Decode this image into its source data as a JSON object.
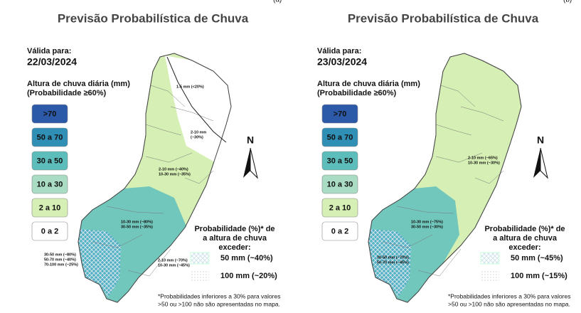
{
  "panels": [
    {
      "tag": "(a)",
      "title": "Previsão Probabilística de Chuva",
      "valid_label": "Válida para:",
      "date": "22/03/2024",
      "legend_title": "Altura de chuva diária (mm)",
      "legend_subtitle": "(Probabilidade ≥60%)",
      "legend": [
        ">70",
        "50 a 70",
        "30 a 50",
        "10 a 30",
        "2 a 10",
        "0 a 2"
      ],
      "north": "N",
      "map_labels": [
        [
          "1-5 mm (<20%)"
        ],
        [
          "2-10 mm",
          "(~30%)"
        ],
        [
          "2-10 mm (~40%)",
          "10-30 mm (~35%)"
        ],
        [
          "10-30 mm (~80%)",
          "30-50 mm (~35%)"
        ],
        [
          "30-50 mm (~80%)",
          "50-70 mm (~40%)",
          "70-100 mm (~25%)"
        ],
        [
          "2-10 mm (~70%)",
          "10-30 mm (~45%)"
        ]
      ],
      "prob_title": [
        "Probabilidade (%)* de",
        "a altura de chuva",
        "exceder:"
      ],
      "prob_items": [
        "50 mm (~40%)",
        "100 mm (~20%)"
      ],
      "footnote": [
        "*Probabilidades inferiores a 30% para valores",
        ">50 ou >100 não são apresentadas no mapa."
      ]
    },
    {
      "tag": "(b)",
      "title": "Previsão Probabilística de Chuva",
      "valid_label": "Válida para:",
      "date": "23/03/2024",
      "legend_title": "Altura de chuva diária (mm)",
      "legend_subtitle": "(Probabilidade ≥60%)",
      "legend": [
        ">70",
        "50 a 70",
        "30 a 50",
        "10 a 30",
        "2 a 10",
        "0 a 2"
      ],
      "north": "N",
      "map_labels": [
        [
          "2-10 mm (~65%)",
          "10-30 mm (~30%)"
        ],
        [
          "10-30 mm (~75%)",
          "30-50 mm (~30%)"
        ],
        [
          "30-50 mm (~70%)",
          "50-70 mm (~45%)"
        ]
      ],
      "prob_title": [
        "Probabilidade (%)* de",
        "a altura de chuva",
        "exceder:"
      ],
      "prob_items": [
        "50 mm (~45%)",
        "100 mm (~15%)"
      ],
      "footnote": [
        "*Probabilidades inferiores a 30% para valores",
        ">50 ou >100 não são apresentadas no mapa."
      ]
    }
  ]
}
